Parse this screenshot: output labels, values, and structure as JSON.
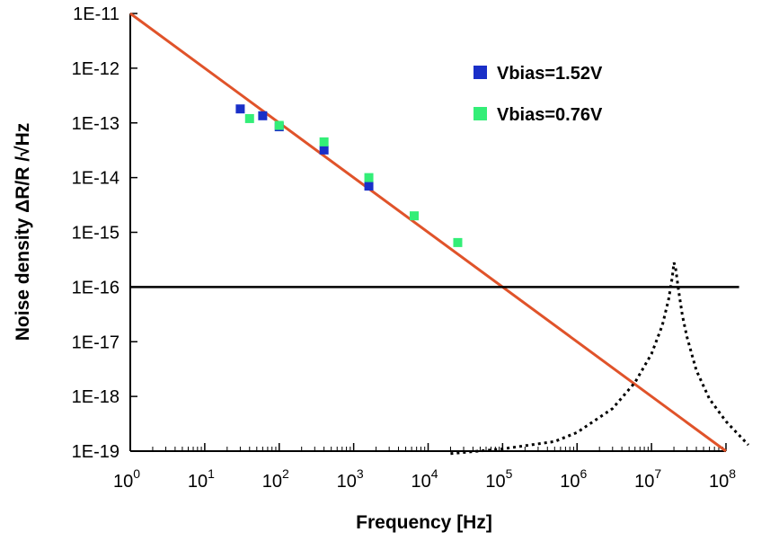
{
  "chart_data": {
    "type": "scatter",
    "title": "",
    "xlabel": "Frequency [Hz]",
    "ylabel": "Noise density ΔR/R /√Hz",
    "x_scale": "log",
    "y_scale": "log",
    "xlim": [
      1,
      100000000
    ],
    "ylim": [
      1e-19,
      1e-11
    ],
    "grid": false,
    "legend_position": "top-right",
    "x_ticks": [
      {
        "base": "10",
        "exp": "0",
        "value": 1
      },
      {
        "base": "10",
        "exp": "1",
        "value": 10
      },
      {
        "base": "10",
        "exp": "2",
        "value": 100
      },
      {
        "base": "10",
        "exp": "3",
        "value": 1000
      },
      {
        "base": "10",
        "exp": "4",
        "value": 10000
      },
      {
        "base": "10",
        "exp": "5",
        "value": 100000
      },
      {
        "base": "10",
        "exp": "6",
        "value": 1000000
      },
      {
        "base": "10",
        "exp": "7",
        "value": 10000000
      },
      {
        "base": "10",
        "exp": "8",
        "value": 100000000
      }
    ],
    "y_ticks": [
      {
        "label": "1E-11",
        "value": 1e-11
      },
      {
        "label": "1E-12",
        "value": 1e-12
      },
      {
        "label": "1E-13",
        "value": 1e-13
      },
      {
        "label": "1E-14",
        "value": 1e-14
      },
      {
        "label": "1E-15",
        "value": 1e-15
      },
      {
        "label": "1E-16",
        "value": 1e-16
      },
      {
        "label": "1E-17",
        "value": 1e-17
      },
      {
        "label": "1E-18",
        "value": 1e-18
      },
      {
        "label": "1E-19",
        "value": 1e-19
      }
    ],
    "series": [
      {
        "name": "Vbias=1.52V",
        "kind": "scatter",
        "color": "#1a2fc8",
        "x": [
          30,
          60,
          100,
          400,
          1600
        ],
        "y": [
          1.8e-13,
          1.35e-13,
          8.5e-14,
          3.2e-14,
          7e-15
        ]
      },
      {
        "name": "Vbias=0.76V",
        "kind": "scatter",
        "color": "#33ee77",
        "x": [
          40,
          100,
          400,
          1600,
          6500,
          25000
        ],
        "y": [
          1.2e-13,
          9e-14,
          4.5e-14,
          1e-14,
          2e-15,
          6.5e-16
        ]
      }
    ],
    "lines": [
      {
        "kind": "line",
        "style": "solid",
        "color": "#e0532a",
        "x": [
          1,
          100000000
        ],
        "y": [
          1e-11,
          1e-19
        ]
      },
      {
        "kind": "line",
        "style": "solid",
        "color": "#000000",
        "x": [
          1,
          150000000
        ],
        "y": [
          1e-16,
          1e-16
        ]
      },
      {
        "kind": "line",
        "style": "dotted",
        "color": "#000000",
        "x": [
          20000,
          100000,
          500000,
          1000000,
          3000000,
          6000000,
          10000000,
          14000000,
          17000000,
          19000000,
          20000000,
          21000000,
          23000000,
          26000000,
          30000000,
          40000000,
          60000000,
          100000000,
          200000000
        ],
        "y": [
          9e-20,
          1.1e-19,
          1.5e-19,
          2.2e-19,
          6e-19,
          1.8e-18,
          6e-18,
          2e-17,
          6e-17,
          1.5e-16,
          2.8e-16,
          2.3e-16,
          9e-17,
          3e-17,
          1.2e-17,
          3e-18,
          9e-19,
          3.5e-19,
          1.3e-19
        ]
      }
    ]
  }
}
